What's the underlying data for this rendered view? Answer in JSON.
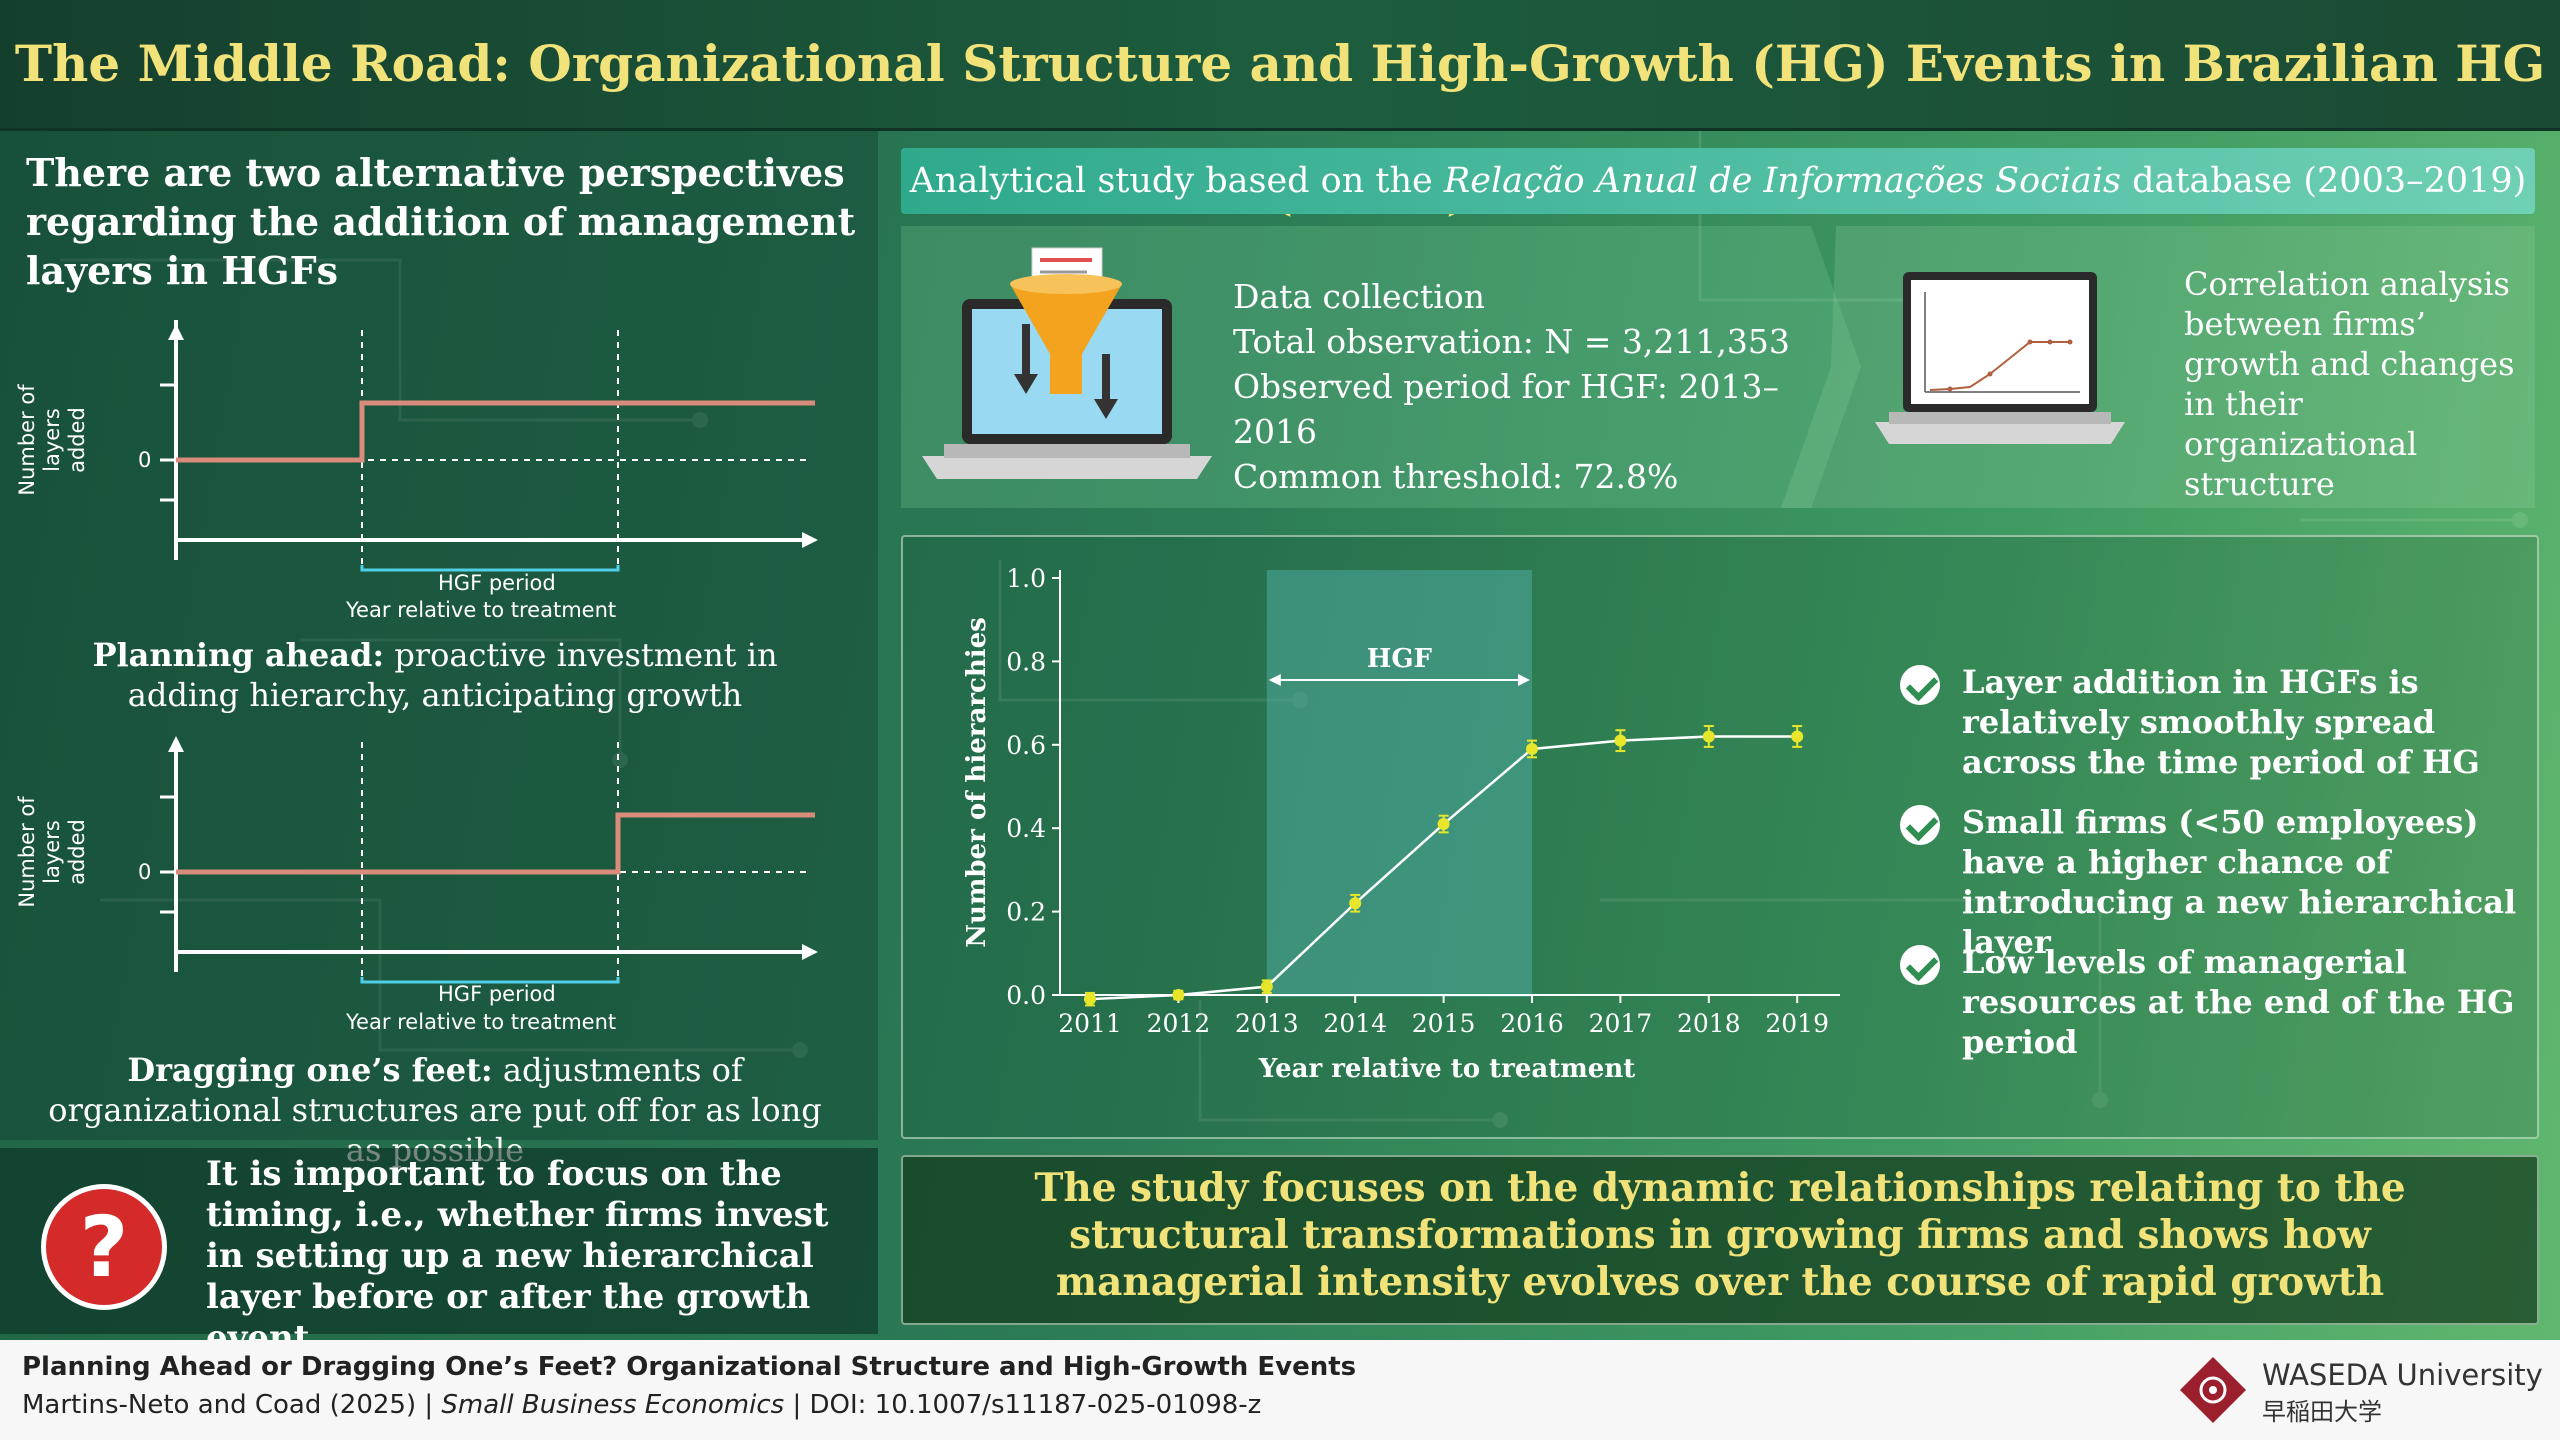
{
  "title": "The Middle Road: Organizational Structure and High-Growth (HG) Events in Brazilian HG Firms (HGFs)",
  "left": {
    "heading": "There are two alternative perspectives regarding the addition of management layers in HGFs",
    "y_axis_label": "Number of layers added",
    "zero_tick": "0",
    "hgf_period": "HGF period",
    "x_axis_label": "Year relative to treatment",
    "planning_title": "Planning ahead:",
    "planning_text": " proactive investment in adding hierarchy, anticipating growth",
    "dragging_title": "Dragging one’s feet:",
    "dragging_text": " adjustments of organizational structures are put off for as long as possible",
    "question_mark": "?",
    "question_text": "It is important to focus on the timing, i.e., whether firms invest in setting up a new hierarchical layer before or after the growth event"
  },
  "banner": {
    "prefix": "Analytical study based on the ",
    "database": "Relação Anual de Informações Sociais",
    "suffix": " database (2003–2019)"
  },
  "info": {
    "line1": "Data collection",
    "line2": "Total observation: N = 3,211,353",
    "line3": "Observed period for HGF: 2013–2016",
    "line4": "Common threshold: 72.8%"
  },
  "correlation": "Correlation analysis between firms’ growth and changes in their organizational structure",
  "chart_data": {
    "type": "line",
    "title": "",
    "xlabel": "Year relative to treatment",
    "ylabel": "Number of hierarchies",
    "x": [
      2011,
      2012,
      2013,
      2014,
      2015,
      2016,
      2017,
      2018,
      2019
    ],
    "y": [
      -0.01,
      0.0,
      0.02,
      0.22,
      0.41,
      0.59,
      0.61,
      0.62,
      0.62
    ],
    "error": [
      0.015,
      0.01,
      0.015,
      0.02,
      0.02,
      0.02,
      0.025,
      0.025,
      0.025
    ],
    "ylim": [
      0.0,
      1.0
    ],
    "yticks": [
      "0.0",
      "0.2",
      "0.4",
      "0.6",
      "0.8",
      "1.0"
    ],
    "xticks": [
      "2011",
      "2012",
      "2013",
      "2014",
      "2015",
      "2016",
      "2017",
      "2018",
      "2019"
    ],
    "shaded_region": {
      "from": 2013,
      "to": 2016,
      "label": "HGF"
    },
    "line_color": "#ffffff",
    "marker_color": "#e8e62a",
    "shade_color": "#4fa9a0",
    "grid": false
  },
  "bullets": [
    "Layer addition in HGFs is relatively smoothly spread across the time period of HG",
    "Small firms (<50 employees) have a higher chance of introducing a new hierarchical layer",
    "Low levels of managerial resources at the end of the HG period"
  ],
  "conclusion": "The study focuses on the dynamic relationships relating to the structural transformations in growing firms and shows how managerial intensity evolves over the course of rapid growth",
  "footer": {
    "paper_title": "Planning Ahead or Dragging One’s Feet? Organizational Structure and High-Growth Events",
    "authors": "Martins-Neto and Coad (2025) | ",
    "journal": "Small Business Economics",
    "doi": " | DOI: 10.1007/s11187-025-01098-z",
    "university": "WASEDA University",
    "university_jp": "早稲田大学"
  },
  "colors": {
    "title": "#f2e27a",
    "step_line": "#d98b7c",
    "hgf_bracket": "#4fd0e8",
    "check": "#2f8f52",
    "question": "#d42a2a",
    "waseda": "#9c1f2e"
  }
}
